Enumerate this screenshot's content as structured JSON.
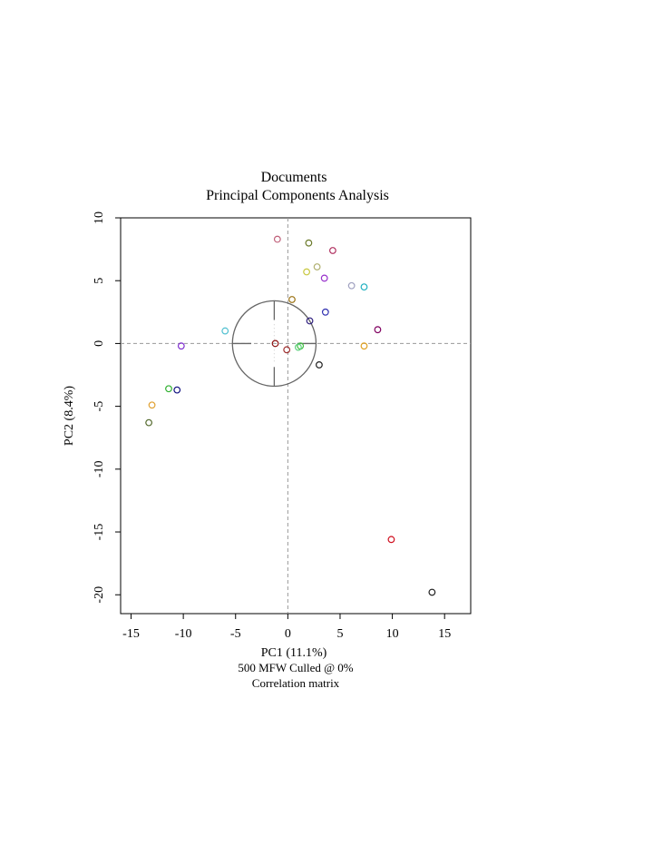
{
  "chart_data": {
    "type": "scatter",
    "title": "Documents",
    "subtitle": "Principal Components Analysis",
    "xlabel": "PC1 (11.1%)",
    "ylabel": "PC2 (8.4%)",
    "caption_lines": [
      "500 MFW  Culled @ 0%",
      "Correlation matrix"
    ],
    "xlim": [
      -16,
      17.5
    ],
    "ylim": [
      -21.5,
      10
    ],
    "xticks": [
      -15,
      -10,
      -5,
      0,
      5,
      10,
      15
    ],
    "yticks": [
      10,
      5,
      0,
      -5,
      -10,
      -15,
      -20
    ],
    "grid": false,
    "reference_lines": {
      "x": 0,
      "y": 0,
      "style": "dashed"
    },
    "inset_circle": {
      "center": [
        -1.3,
        0
      ],
      "radius_x": 4,
      "radius_y": 3.4
    },
    "points": [
      {
        "x": -1,
        "y": 8.3,
        "color": "#c0607a"
      },
      {
        "x": 2,
        "y": 8,
        "color": "#6b7a2a"
      },
      {
        "x": 4.3,
        "y": 7.4,
        "color": "#b03060"
      },
      {
        "x": 2.8,
        "y": 6.1,
        "color": "#b0b070"
      },
      {
        "x": 1.8,
        "y": 5.7,
        "color": "#c8c840"
      },
      {
        "x": 3.5,
        "y": 5.2,
        "color": "#9932cc"
      },
      {
        "x": 6.1,
        "y": 4.6,
        "color": "#9fa0c0"
      },
      {
        "x": 7.3,
        "y": 4.5,
        "color": "#20b0c0"
      },
      {
        "x": 0.4,
        "y": 3.5,
        "color": "#9a7010"
      },
      {
        "x": 3.6,
        "y": 2.5,
        "color": "#3030b0"
      },
      {
        "x": 2.1,
        "y": 1.8,
        "color": "#302080"
      },
      {
        "x": 8.6,
        "y": 1.1,
        "color": "#800060"
      },
      {
        "x": -6,
        "y": 1,
        "color": "#50c0d0"
      },
      {
        "x": -1.2,
        "y": 0,
        "color": "#8b1010"
      },
      {
        "x": -10.2,
        "y": -0.2,
        "color": "#8030d0"
      },
      {
        "x": 7.3,
        "y": -0.2,
        "color": "#e0a020"
      },
      {
        "x": 1.2,
        "y": -0.2,
        "color": "#40c040"
      },
      {
        "x": 1,
        "y": -0.3,
        "color": "#60d080"
      },
      {
        "x": -0.1,
        "y": -0.5,
        "color": "#a03030"
      },
      {
        "x": 3,
        "y": -1.7,
        "color": "#202020"
      },
      {
        "x": -11.4,
        "y": -3.6,
        "color": "#30b030"
      },
      {
        "x": -10.6,
        "y": -3.7,
        "color": "#101080"
      },
      {
        "x": -13,
        "y": -4.9,
        "color": "#e0a030"
      },
      {
        "x": -13.3,
        "y": -6.3,
        "color": "#556b2f"
      },
      {
        "x": 9.9,
        "y": -15.6,
        "color": "#d01020"
      },
      {
        "x": 13.8,
        "y": -19.8,
        "color": "#202020"
      }
    ]
  }
}
